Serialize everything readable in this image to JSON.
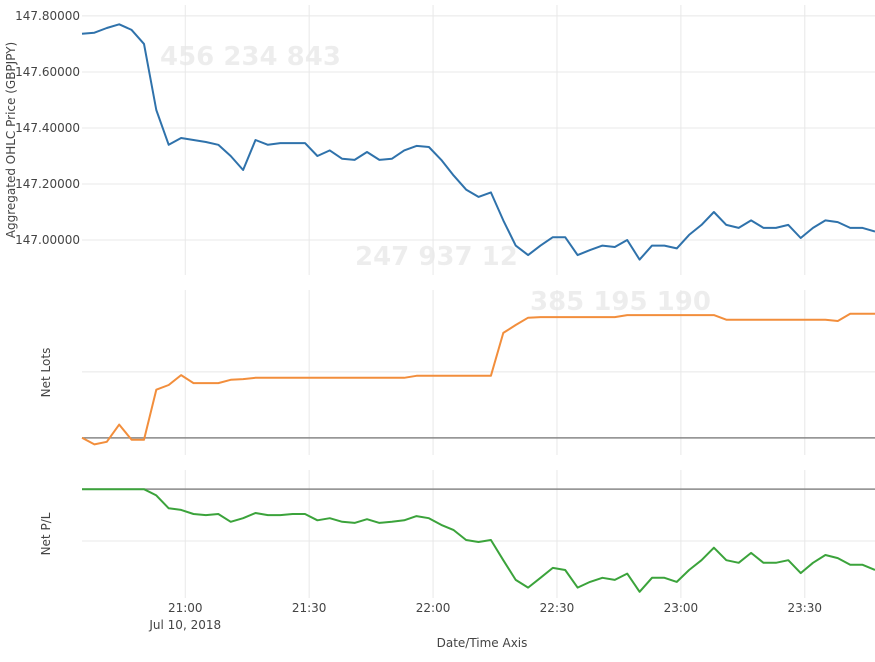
{
  "chart_data": {
    "type": "line",
    "x_label": "Date/Time Axis",
    "x_date_label": "Jul 10, 2018",
    "x": [
      "2018-07-10 20:35",
      "2018-07-10 20:38",
      "2018-07-10 20:41",
      "2018-07-10 20:44",
      "2018-07-10 20:47",
      "2018-07-10 20:50",
      "2018-07-10 20:53",
      "2018-07-10 20:56",
      "2018-07-10 20:59",
      "2018-07-10 21:02",
      "2018-07-10 21:05",
      "2018-07-10 21:08",
      "2018-07-10 21:11",
      "2018-07-10 21:14",
      "2018-07-10 21:17",
      "2018-07-10 21:20",
      "2018-07-10 21:23",
      "2018-07-10 21:26",
      "2018-07-10 21:29",
      "2018-07-10 21:32",
      "2018-07-10 21:35",
      "2018-07-10 21:38",
      "2018-07-10 21:41",
      "2018-07-10 21:44",
      "2018-07-10 21:47",
      "2018-07-10 21:50",
      "2018-07-10 21:53",
      "2018-07-10 21:56",
      "2018-07-10 21:59",
      "2018-07-10 22:02",
      "2018-07-10 22:05",
      "2018-07-10 22:08",
      "2018-07-10 22:11",
      "2018-07-10 22:14",
      "2018-07-10 22:17",
      "2018-07-10 22:20",
      "2018-07-10 22:23",
      "2018-07-10 22:26",
      "2018-07-10 22:29",
      "2018-07-10 22:32",
      "2018-07-10 22:35",
      "2018-07-10 22:38",
      "2018-07-10 22:41",
      "2018-07-10 22:44",
      "2018-07-10 22:47",
      "2018-07-10 22:50",
      "2018-07-10 22:53",
      "2018-07-10 22:56",
      "2018-07-10 22:59",
      "2018-07-10 23:02",
      "2018-07-10 23:05",
      "2018-07-10 23:08",
      "2018-07-10 23:11",
      "2018-07-10 23:14",
      "2018-07-10 23:17",
      "2018-07-10 23:20",
      "2018-07-10 23:23",
      "2018-07-10 23:26",
      "2018-07-10 23:29",
      "2018-07-10 23:32",
      "2018-07-10 23:35",
      "2018-07-10 23:38",
      "2018-07-10 23:41",
      "2018-07-10 23:44",
      "2018-07-10 23:47"
    ],
    "xlim": [
      "2018-07-10 20:35",
      "2018-07-10 23:47"
    ],
    "xticks": [
      {
        "value": "2018-07-10 21:00",
        "label": "21:00"
      },
      {
        "value": "2018-07-10 21:30",
        "label": "21:30"
      },
      {
        "value": "2018-07-10 22:00",
        "label": "22:00"
      },
      {
        "value": "2018-07-10 22:30",
        "label": "22:30"
      },
      {
        "value": "2018-07-10 23:00",
        "label": "23:00"
      },
      {
        "value": "2018-07-10 23:30",
        "label": "23:30"
      }
    ],
    "grid": true,
    "watermarks": [
      "456 234 843",
      "247 937 12",
      "385 195 190"
    ],
    "panels": [
      {
        "y_label": "Aggregated OHLC Price (GBPJPY)",
        "ylim": [
          146.875,
          147.839
        ],
        "yticks": [
          {
            "value": 147.8,
            "label": "147.80000"
          },
          {
            "value": 147.6,
            "label": "147.60000"
          },
          {
            "value": 147.4,
            "label": "147.40000"
          },
          {
            "value": 147.2,
            "label": "147.20000"
          },
          {
            "value": 147.0,
            "label": "147.00000"
          }
        ],
        "series": [
          {
            "color": "#2f72ab",
            "values": [
              147.736,
              147.74,
              147.757,
              147.77,
              147.75,
              147.7,
              147.464,
              147.34,
              147.364,
              147.357,
              147.35,
              147.34,
              147.3,
              147.25,
              147.357,
              147.34,
              147.346,
              147.346,
              147.346,
              147.3,
              147.32,
              147.29,
              147.286,
              147.314,
              147.286,
              147.29,
              147.32,
              147.336,
              147.332,
              147.286,
              147.23,
              147.18,
              147.154,
              147.17,
              147.07,
              146.98,
              146.946,
              146.98,
              147.01,
              147.01,
              146.946,
              146.964,
              146.98,
              146.975,
              147.0,
              146.93,
              146.98,
              146.98,
              146.97,
              147.018,
              147.054,
              147.1,
              147.054,
              147.043,
              147.07,
              147.043,
              147.043,
              147.054,
              147.007,
              147.043,
              147.07,
              147.064,
              147.043,
              147.043,
              147.03
            ]
          }
        ]
      },
      {
        "y_label": "Net Lots",
        "ylim": [
          -0.26,
          2.24
        ],
        "gridlines": [
          0,
          1
        ],
        "zero_line": true,
        "series": [
          {
            "color": "#f28e3c",
            "values": [
              0,
              -0.1,
              -0.06,
              0.2,
              -0.03,
              -0.03,
              0.73,
              0.8,
              0.95,
              0.83,
              0.83,
              0.83,
              0.88,
              0.89,
              0.91,
              0.91,
              0.91,
              0.91,
              0.91,
              0.91,
              0.91,
              0.91,
              0.91,
              0.91,
              0.91,
              0.91,
              0.91,
              0.94,
              0.94,
              0.94,
              0.94,
              0.94,
              0.94,
              0.94,
              1.59,
              1.71,
              1.82,
              1.83,
              1.83,
              1.83,
              1.83,
              1.83,
              1.83,
              1.83,
              1.86,
              1.86,
              1.86,
              1.86,
              1.86,
              1.86,
              1.86,
              1.86,
              1.79,
              1.79,
              1.79,
              1.79,
              1.79,
              1.79,
              1.79,
              1.79,
              1.79,
              1.77,
              1.88,
              1.88,
              1.88
            ]
          }
        ]
      },
      {
        "y_label": "Net P/L",
        "ylim": [
          -2.1,
          0.37
        ],
        "gridlines": [
          0,
          -1
        ],
        "zero_line": true,
        "series": [
          {
            "color": "#3ba33b",
            "values": [
              0,
              0,
              0,
              0,
              0,
              0,
              -0.12,
              -0.37,
              -0.4,
              -0.48,
              -0.5,
              -0.48,
              -0.63,
              -0.56,
              -0.46,
              -0.5,
              -0.5,
              -0.48,
              -0.48,
              -0.6,
              -0.56,
              -0.63,
              -0.65,
              -0.58,
              -0.65,
              -0.63,
              -0.6,
              -0.52,
              -0.56,
              -0.69,
              -0.79,
              -0.98,
              -1.02,
              -0.98,
              -1.37,
              -1.75,
              -1.9,
              -1.71,
              -1.52,
              -1.56,
              -1.9,
              -1.79,
              -1.71,
              -1.75,
              -1.63,
              -1.98,
              -1.71,
              -1.71,
              -1.79,
              -1.56,
              -1.37,
              -1.13,
              -1.37,
              -1.42,
              -1.23,
              -1.42,
              -1.42,
              -1.37,
              -1.62,
              -1.42,
              -1.27,
              -1.33,
              -1.46,
              -1.46,
              -1.56
            ]
          }
        ]
      }
    ]
  }
}
